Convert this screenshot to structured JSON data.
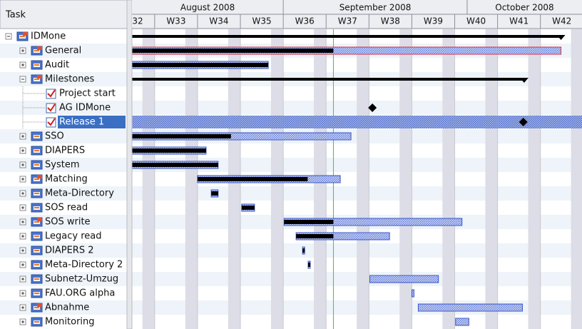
{
  "header": {
    "task_column": "Task"
  },
  "timeline": {
    "xlim": [
      32.47,
      42.97
    ],
    "months": [
      {
        "label": "August 2008",
        "start": 31.57,
        "end": 36
      },
      {
        "label": "September 2008",
        "start": 36,
        "end": 40.29
      },
      {
        "label": "October 2008",
        "start": 40.29,
        "end": 44.43
      }
    ],
    "weeks": [
      {
        "value": 32,
        "label": "32"
      },
      {
        "value": 33,
        "label": "W33"
      },
      {
        "value": 34,
        "label": "W34"
      },
      {
        "value": 35,
        "label": "W35"
      },
      {
        "value": 36,
        "label": "W36"
      },
      {
        "value": 37,
        "label": "W37"
      },
      {
        "value": 38,
        "label": "W38"
      },
      {
        "value": 39,
        "label": "W39"
      },
      {
        "value": 40,
        "label": "W40"
      },
      {
        "value": 41,
        "label": "W41"
      },
      {
        "value": 42,
        "label": "W42"
      }
    ],
    "today": 37.17
  },
  "tasks": [
    {
      "label": "IDMone",
      "level": 0,
      "icon": "summary",
      "expanded": true,
      "style": "summary",
      "start": 32.47,
      "end": 42.48
    },
    {
      "label": "General",
      "level": 1,
      "icon": "summary",
      "expanded": false,
      "style": "bar",
      "start": 32.47,
      "end": 42.48,
      "progress": 37.17,
      "border": "#d03050"
    },
    {
      "label": "Audit",
      "level": 1,
      "icon": "task",
      "expanded": false,
      "style": "bar",
      "start": 32.47,
      "end": 35.65,
      "progress": 35.65
    },
    {
      "label": "Milestones",
      "level": 1,
      "icon": "summary",
      "expanded": true,
      "style": "summary",
      "start": 32.47,
      "end": 41.62
    },
    {
      "label": "Project start",
      "level": 2,
      "icon": "milestone",
      "style": "milestone",
      "start": null
    },
    {
      "label": "AG IDMone",
      "level": 2,
      "icon": "milestone",
      "style": "milestone",
      "start": 38.08
    },
    {
      "label": "Release 1",
      "level": 2,
      "icon": "milestone",
      "style": "milestone",
      "start": 41.6,
      "selected": true
    },
    {
      "label": "SSO",
      "level": 1,
      "icon": "task",
      "expanded": false,
      "style": "bar",
      "start": 32.47,
      "end": 37.58,
      "progress": 34.78
    },
    {
      "label": "DIAPERS",
      "level": 1,
      "icon": "task",
      "expanded": false,
      "style": "bar",
      "start": 32.47,
      "end": 34.2,
      "progress": 34.2
    },
    {
      "label": "System",
      "level": 1,
      "icon": "task",
      "expanded": false,
      "style": "bar",
      "start": 32.47,
      "end": 34.48,
      "progress": 34.48
    },
    {
      "label": "Matching",
      "level": 1,
      "icon": "summary",
      "expanded": false,
      "style": "bar",
      "start": 34.0,
      "end": 37.33,
      "progress": 36.57
    },
    {
      "label": "Meta-Directory",
      "level": 1,
      "icon": "task",
      "expanded": false,
      "style": "bar",
      "start": 34.32,
      "end": 34.48,
      "progress": 34.48
    },
    {
      "label": "SOS read",
      "level": 1,
      "icon": "task",
      "expanded": false,
      "style": "bar",
      "start": 35.03,
      "end": 35.33,
      "progress": 35.33
    },
    {
      "label": "SOS write",
      "level": 1,
      "icon": "summary",
      "expanded": false,
      "style": "bar",
      "start": 36.02,
      "end": 40.17,
      "progress": 37.17
    },
    {
      "label": "Legacy read",
      "level": 1,
      "icon": "task",
      "expanded": false,
      "style": "bar",
      "start": 36.3,
      "end": 38.48,
      "progress": 37.17
    },
    {
      "label": "DIAPERS 2",
      "level": 1,
      "icon": "task",
      "expanded": false,
      "style": "bar",
      "start": 36.45,
      "end": 36.5,
      "progress": 36.5
    },
    {
      "label": "Meta-Directory 2",
      "level": 1,
      "icon": "task",
      "expanded": false,
      "style": "bar",
      "start": 36.58,
      "end": 36.63,
      "progress": 36.63
    },
    {
      "label": "Subnetz-Umzug",
      "level": 1,
      "icon": "task",
      "expanded": false,
      "style": "bar",
      "start": 38.02,
      "end": 39.62
    },
    {
      "label": "FAU.ORG alpha",
      "level": 1,
      "icon": "task",
      "expanded": false,
      "style": "bar",
      "start": 39.0,
      "end": 39.05
    },
    {
      "label": "Abnahme",
      "level": 1,
      "icon": "summary",
      "expanded": false,
      "style": "bar",
      "start": 39.15,
      "end": 41.58
    },
    {
      "label": "Monitoring",
      "level": 1,
      "icon": "task",
      "expanded": false,
      "style": "bar",
      "start": 40.02,
      "end": 40.33
    }
  ]
}
